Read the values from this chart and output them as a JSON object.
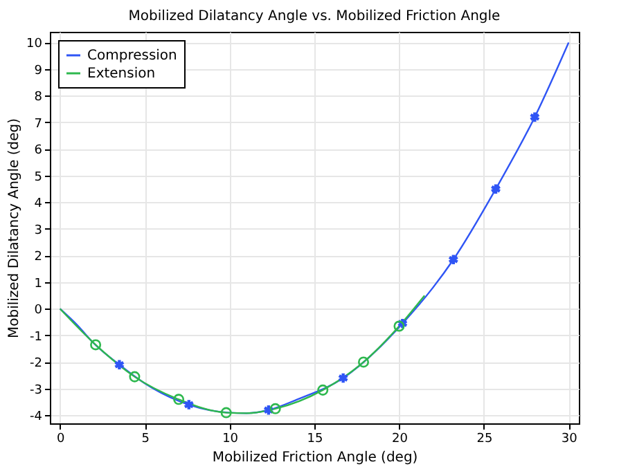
{
  "chart_data": {
    "type": "line",
    "title": "Mobilized Dilatancy Angle vs. Mobilized Friction Angle",
    "xlabel": "Mobilized Friction Angle (deg)",
    "ylabel": "Mobilized Dilatancy Angle (deg)",
    "xlim": [
      -0.6,
      30.6
    ],
    "ylim": [
      -4.3,
      10.4
    ],
    "xticks": [
      0,
      5,
      10,
      15,
      20,
      25,
      30
    ],
    "yticks": [
      -4,
      -3,
      -2,
      -1,
      0,
      1,
      2,
      3,
      4,
      5,
      6,
      7,
      8,
      9,
      10
    ],
    "grid": true,
    "legend": "top left",
    "series": [
      {
        "name": "Compression",
        "color": "#2f55f5",
        "marker": "none",
        "x": [
          0,
          1,
          2,
          3.5,
          5,
          7.6,
          10,
          11,
          12.3,
          14,
          16.7,
          18,
          20.2,
          22,
          23.2,
          25.7,
          28,
          30
        ],
        "values": [
          0,
          -0.6,
          -1.3,
          -2.1,
          -2.8,
          -3.6,
          -3.9,
          -3.92,
          -3.8,
          -3.4,
          -2.6,
          -1.95,
          -0.55,
          0.8,
          1.85,
          4.5,
          7.2,
          10
        ]
      },
      {
        "name": "Extension",
        "color": "#2eb84e",
        "marker": "none",
        "x": [
          0,
          2.1,
          4.4,
          7,
          9.8,
          11,
          12.7,
          15.5,
          17.9,
          20,
          21.5
        ],
        "values": [
          0,
          -1.35,
          -2.55,
          -3.4,
          -3.9,
          -3.92,
          -3.75,
          -3.05,
          -2.0,
          -0.65,
          0.5
        ]
      },
      {
        "type": "scatter",
        "color": "#2f55f5",
        "marker": "cross",
        "x": [
          3.5,
          7.6,
          12.3,
          16.7,
          20.2,
          23.2,
          25.7,
          28
        ],
        "values": [
          -2.1,
          -3.6,
          -3.8,
          -2.6,
          -0.55,
          1.85,
          4.5,
          7.2
        ]
      },
      {
        "type": "scatter",
        "color": "#2eb84e",
        "marker": "circle",
        "x": [
          2.1,
          4.4,
          7,
          9.8,
          12.7,
          15.5,
          17.9,
          20
        ],
        "values": [
          -1.35,
          -2.55,
          -3.4,
          -3.9,
          -3.75,
          -3.05,
          -2.0,
          -0.65
        ]
      }
    ]
  }
}
